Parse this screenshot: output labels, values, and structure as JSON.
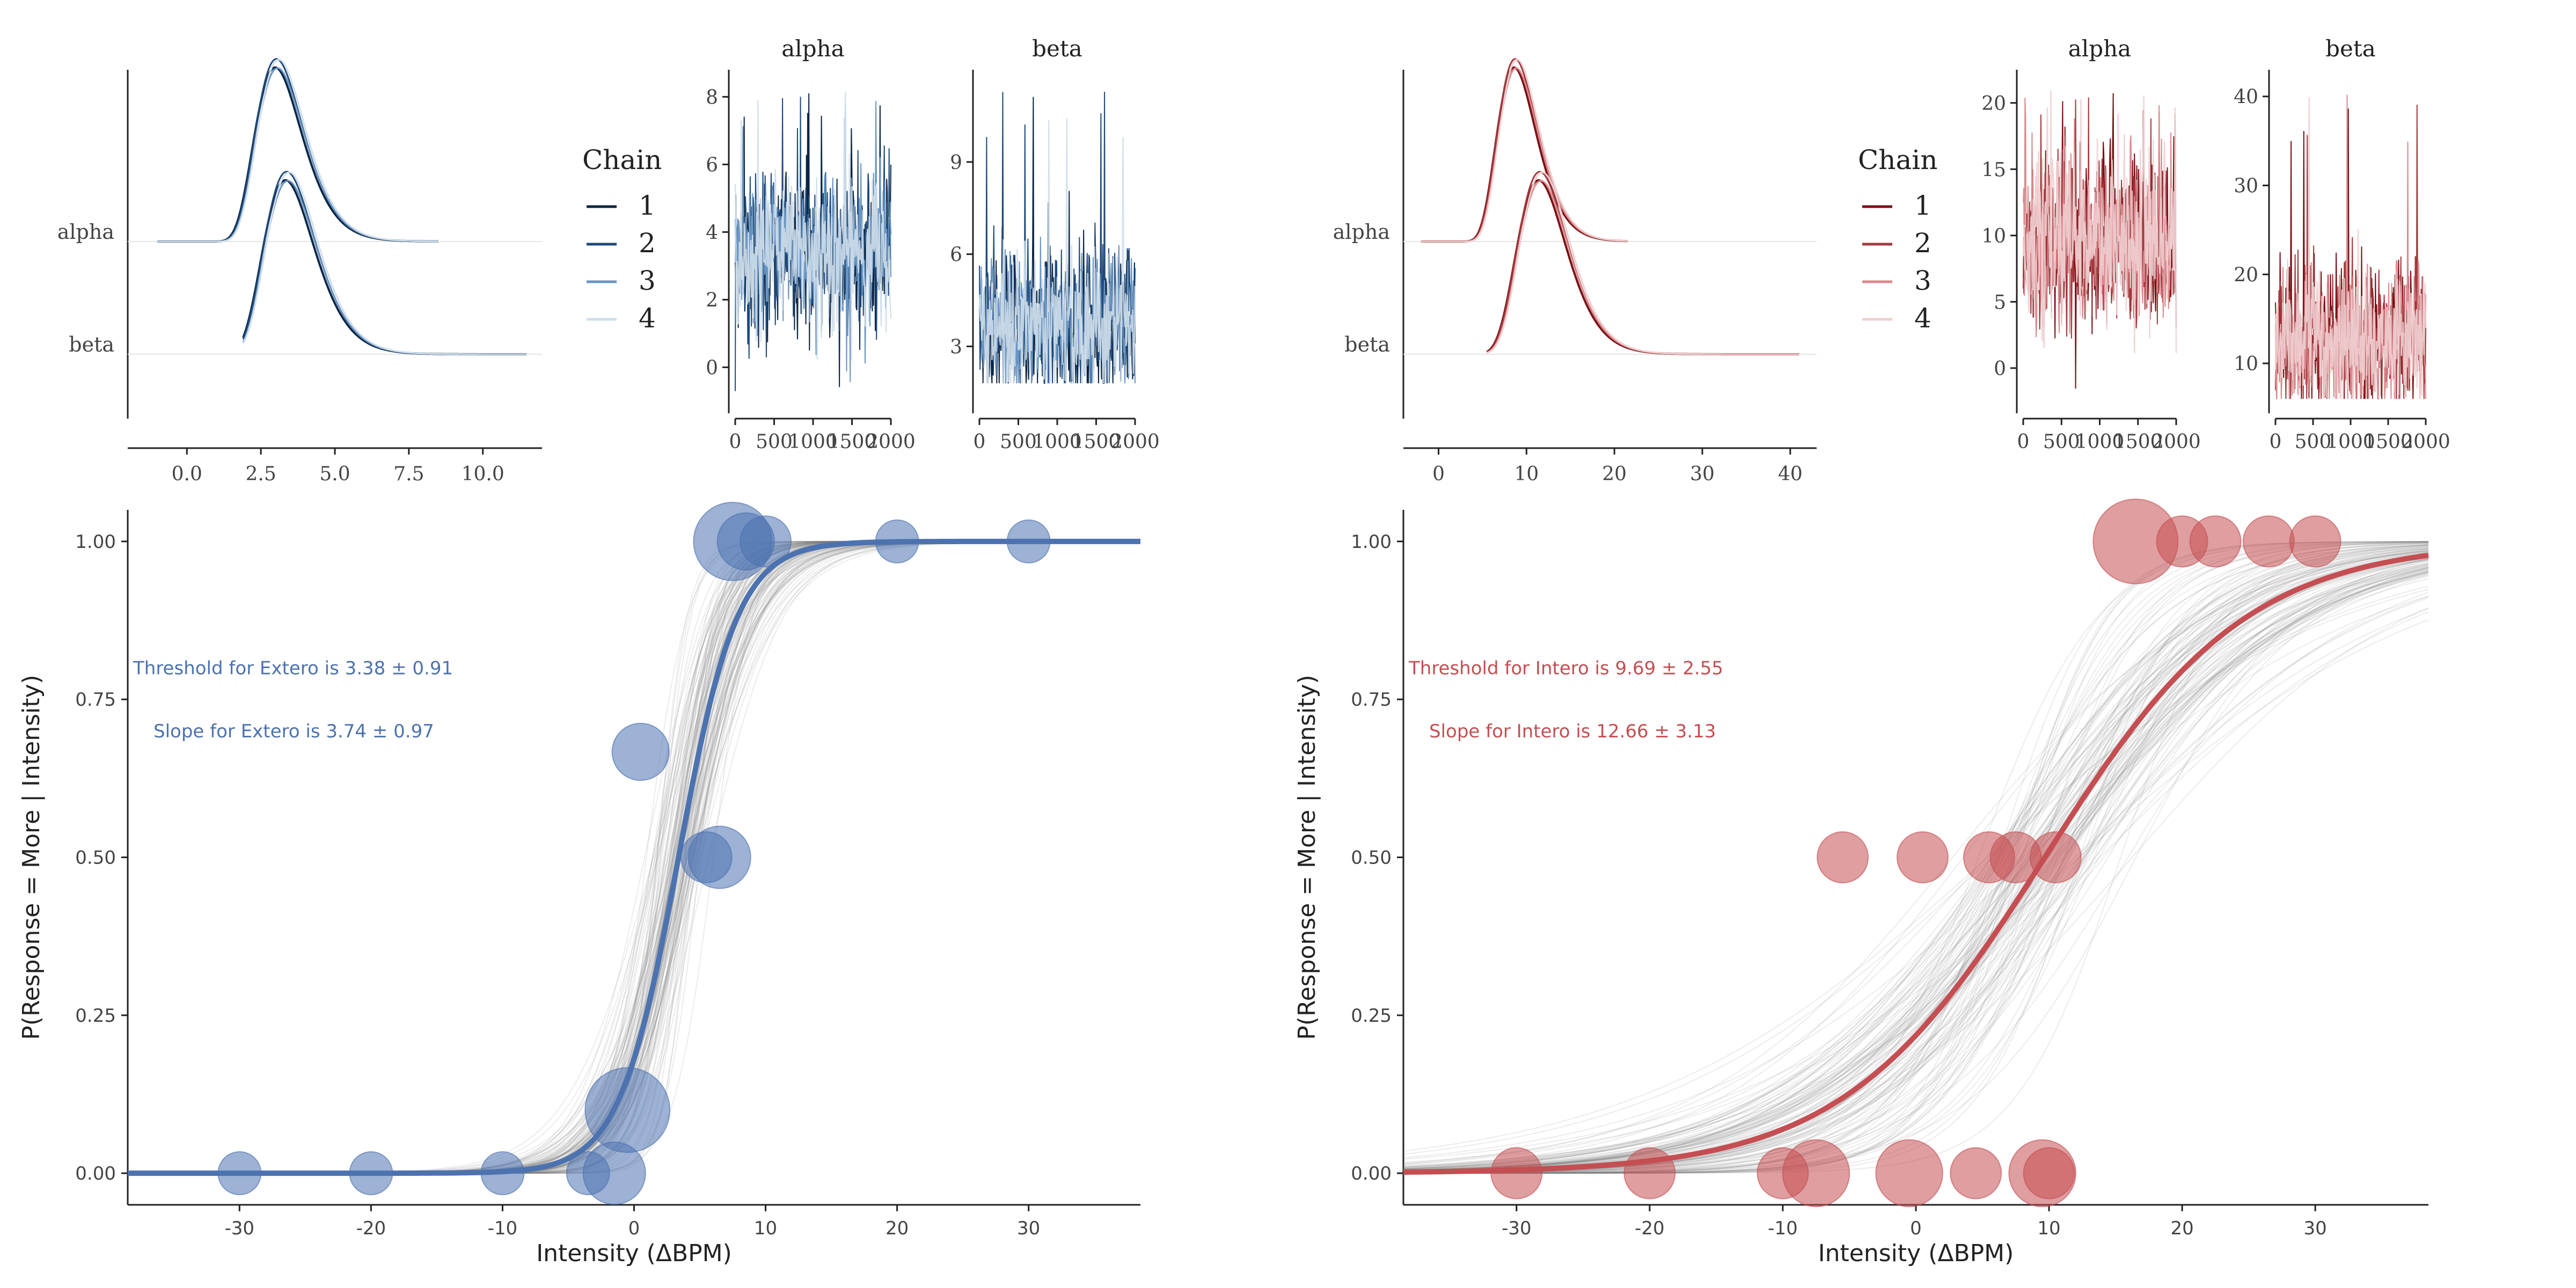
{
  "figure": {
    "panels": [
      "Extero",
      "Intero"
    ]
  },
  "colors": {
    "extero": {
      "main": "#4c72b0",
      "chains": [
        "#0b2645",
        "#1f4a79",
        "#6a95c2",
        "#cfdeea"
      ],
      "fill": "#4c72b0"
    },
    "intero": {
      "main": "#c44e52",
      "chains": [
        "#7a1115",
        "#a33a3e",
        "#d98a8e",
        "#efcfd1"
      ],
      "fill": "#c44e52"
    },
    "gray": "#777777"
  },
  "chart_data": [
    {
      "id": "extero-density",
      "type": "area",
      "title": "",
      "categories": [
        "alpha",
        "beta"
      ],
      "x_ticks": [
        "0.0",
        "2.5",
        "5.0",
        "7.5",
        "10.0"
      ],
      "xlim": [
        -2,
        12
      ],
      "series": [
        {
          "param": "alpha",
          "mean": 3.38,
          "sd": 0.91,
          "range": [
            -1.0,
            8.5
          ]
        },
        {
          "param": "beta",
          "mean": 3.74,
          "sd": 0.97,
          "range": [
            1.9,
            11.5
          ]
        }
      ]
    },
    {
      "id": "extero-trace",
      "type": "line",
      "facets": [
        {
          "title": "alpha",
          "y_ticks": [
            "0",
            "2",
            "4",
            "6",
            "8"
          ],
          "ylim": [
            -1.2,
            8.8
          ],
          "mean": 3.38,
          "sd": 0.91,
          "max": 8.3,
          "min": -1.1
        },
        {
          "title": "beta",
          "y_ticks": [
            "3",
            "6",
            "9"
          ],
          "ylim": [
            1.0,
            12.0
          ],
          "mean": 3.74,
          "sd": 0.97,
          "max": 11.4,
          "min": 1.8
        }
      ],
      "x_ticks": [
        "0",
        "500",
        "1000",
        "1500",
        "2000"
      ],
      "xlim": [
        0,
        2000
      ],
      "legend": {
        "title": "Chain",
        "entries": [
          "1",
          "2",
          "3",
          "4"
        ]
      }
    },
    {
      "id": "extero-psychometric",
      "type": "scatter",
      "xlabel": "Intensity  (ΔBPM)",
      "ylabel": "P(Response = More | Intensity)",
      "x_ticks": [
        "-30",
        "-20",
        "-10",
        "0",
        "10",
        "20",
        "30"
      ],
      "y_ticks": [
        "0.00",
        "0.25",
        "0.50",
        "0.75",
        "1.00"
      ],
      "xlim": [
        -38.5,
        38.5
      ],
      "ylim": [
        -0.05,
        1.05
      ],
      "threshold": 3.38,
      "slope": 3.74,
      "annotations": [
        "Threshold for  Extero is 3.38 ± 0.91",
        "Slope for  Extero is 3.74 ± 0.97"
      ],
      "points": [
        {
          "x": -30,
          "y": 0.0,
          "n": 1
        },
        {
          "x": -20,
          "y": 0.0,
          "n": 1
        },
        {
          "x": -10,
          "y": 0.0,
          "n": 1
        },
        {
          "x": -3.5,
          "y": 0.0,
          "n": 1
        },
        {
          "x": -1.5,
          "y": 0.0,
          "n": 4
        },
        {
          "x": -0.5,
          "y": 0.1,
          "n": 10
        },
        {
          "x": 0.5,
          "y": 0.667,
          "n": 3
        },
        {
          "x": 5.5,
          "y": 0.5,
          "n": 2
        },
        {
          "x": 6.5,
          "y": 0.5,
          "n": 4
        },
        {
          "x": 7.5,
          "y": 1.0,
          "n": 8
        },
        {
          "x": 8.5,
          "y": 1.0,
          "n": 3
        },
        {
          "x": 10,
          "y": 1.0,
          "n": 2
        },
        {
          "x": 20,
          "y": 1.0,
          "n": 1
        },
        {
          "x": 30,
          "y": 1.0,
          "n": 1
        }
      ]
    },
    {
      "id": "intero-density",
      "type": "area",
      "title": "",
      "categories": [
        "alpha",
        "beta"
      ],
      "x_ticks": [
        "0",
        "10",
        "20",
        "30",
        "40"
      ],
      "xlim": [
        -4,
        43
      ],
      "series": [
        {
          "param": "alpha",
          "mean": 9.69,
          "sd": 2.55,
          "range": [
            -2.0,
            21.5
          ]
        },
        {
          "param": "beta",
          "mean": 12.66,
          "sd": 3.13,
          "range": [
            5.5,
            41.0
          ]
        }
      ]
    },
    {
      "id": "intero-trace",
      "type": "line",
      "facets": [
        {
          "title": "alpha",
          "y_ticks": [
            "0",
            "5",
            "10",
            "15",
            "20"
          ],
          "ylim": [
            -3,
            22.5
          ],
          "mean": 9.69,
          "sd": 2.55,
          "max": 21.0,
          "min": -2.0
        },
        {
          "title": "beta",
          "y_ticks": [
            "10",
            "20",
            "30",
            "40"
          ],
          "ylim": [
            5,
            43
          ],
          "mean": 12.66,
          "sd": 3.13,
          "max": 41.0,
          "min": 6.0
        }
      ],
      "x_ticks": [
        "0",
        "500",
        "1000",
        "1500",
        "2000"
      ],
      "xlim": [
        0,
        2000
      ],
      "legend": {
        "title": "Chain",
        "entries": [
          "1",
          "2",
          "3",
          "4"
        ]
      }
    },
    {
      "id": "intero-psychometric",
      "type": "scatter",
      "xlabel": "Intensity  (ΔBPM)",
      "ylabel": "P(Response = More | Intensity)",
      "x_ticks": [
        "-30",
        "-20",
        "-10",
        "0",
        "10",
        "20",
        "30"
      ],
      "y_ticks": [
        "0.00",
        "0.25",
        "0.50",
        "0.75",
        "1.00"
      ],
      "xlim": [
        -38.5,
        38.5
      ],
      "ylim": [
        -0.05,
        1.05
      ],
      "threshold": 9.69,
      "slope": 12.66,
      "annotations": [
        "Threshold for  Intero is 9.69 ± 2.55",
        "Slope for  Intero is 12.66 ± 3.13"
      ],
      "points": [
        {
          "x": -30,
          "y": 0.0,
          "n": 2
        },
        {
          "x": -20,
          "y": 0.0,
          "n": 2
        },
        {
          "x": -10,
          "y": 0.0,
          "n": 2
        },
        {
          "x": -7.5,
          "y": 0.0,
          "n": 5
        },
        {
          "x": -0.5,
          "y": 0.0,
          "n": 5
        },
        {
          "x": 4.5,
          "y": 0.0,
          "n": 2
        },
        {
          "x": 9.5,
          "y": 0.0,
          "n": 5
        },
        {
          "x": 10,
          "y": 0.0,
          "n": 2
        },
        {
          "x": -5.5,
          "y": 0.5,
          "n": 2
        },
        {
          "x": 0.5,
          "y": 0.5,
          "n": 2
        },
        {
          "x": 5.5,
          "y": 0.5,
          "n": 2
        },
        {
          "x": 7.5,
          "y": 0.5,
          "n": 2
        },
        {
          "x": 10.5,
          "y": 0.5,
          "n": 2
        },
        {
          "x": 16.5,
          "y": 1.0,
          "n": 10
        },
        {
          "x": 20,
          "y": 1.0,
          "n": 2
        },
        {
          "x": 22.5,
          "y": 1.0,
          "n": 2
        },
        {
          "x": 26.5,
          "y": 1.0,
          "n": 2
        },
        {
          "x": 30,
          "y": 1.0,
          "n": 2
        }
      ]
    }
  ]
}
